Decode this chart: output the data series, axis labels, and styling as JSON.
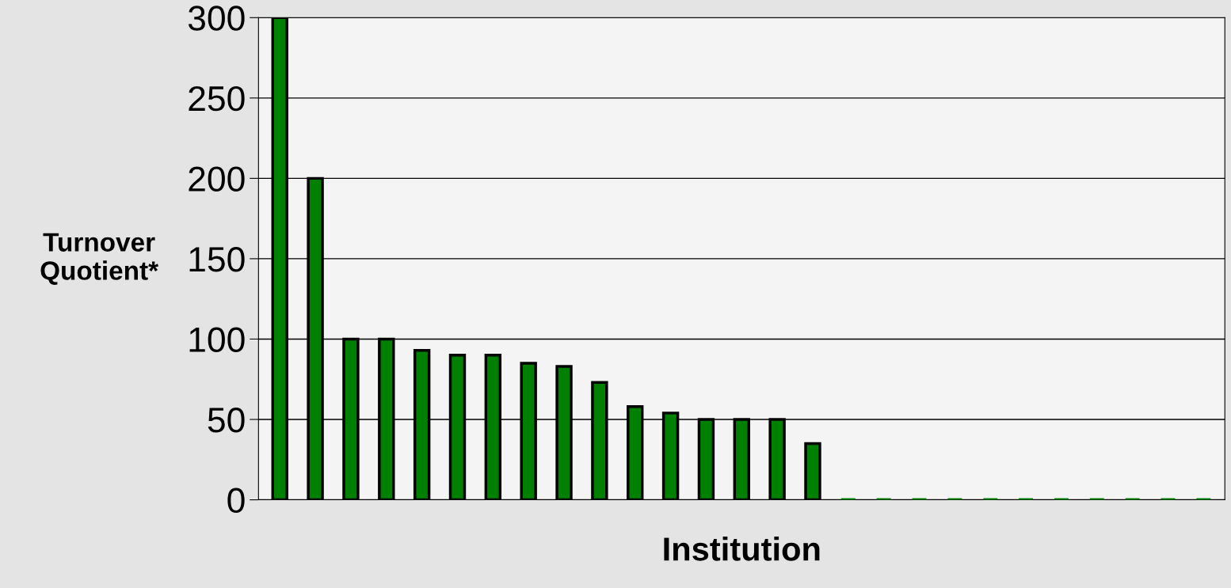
{
  "chart_data": {
    "type": "bar",
    "xlabel": "Institution",
    "ylabel": "Turnover\nQuotient*",
    "categories": [
      null,
      null,
      null,
      null,
      null,
      null,
      null,
      null,
      null,
      null,
      null,
      null,
      null,
      null,
      null,
      null,
      null,
      null,
      null,
      null,
      null,
      null,
      null,
      null,
      null,
      null,
      null
    ],
    "values": [
      300,
      200,
      100,
      100,
      93,
      90,
      90,
      85,
      83,
      73,
      58,
      54,
      50,
      50,
      50,
      35,
      0,
      0,
      0,
      0,
      0,
      0,
      0,
      0,
      0,
      0,
      0
    ],
    "color": "#008000",
    "ylim": [
      0,
      300
    ],
    "yticks": [
      0,
      50,
      100,
      150,
      200,
      250,
      300
    ],
    "grid": "y"
  }
}
